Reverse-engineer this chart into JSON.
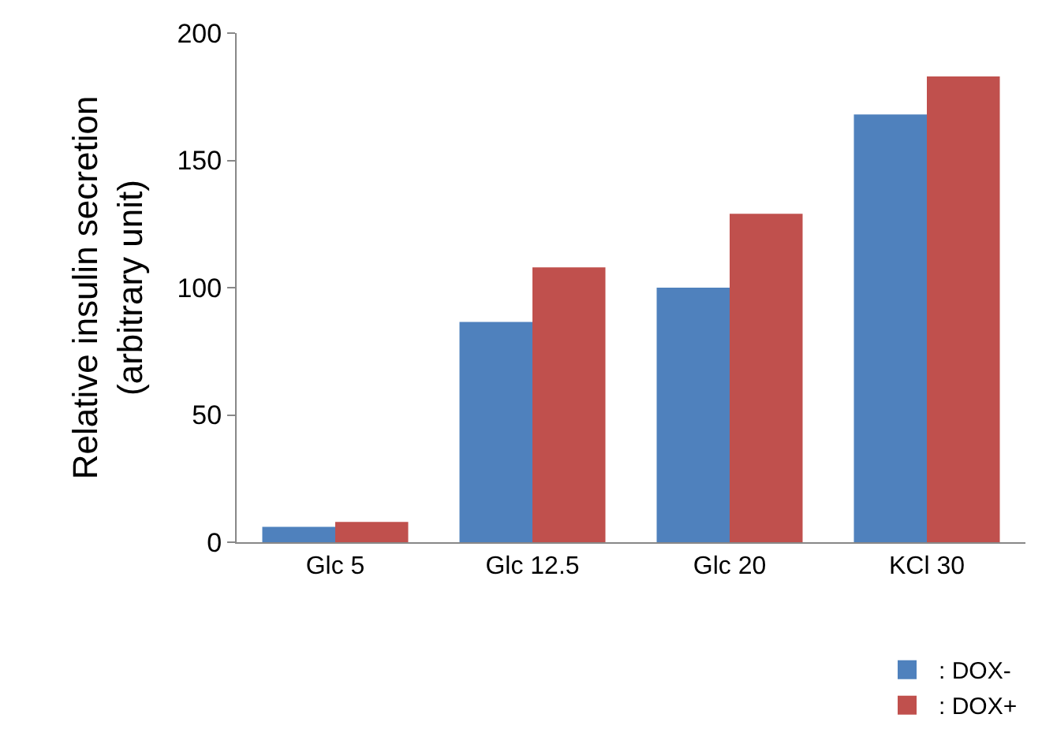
{
  "chart_data": {
    "type": "bar",
    "ylabel": "Relative insulin secretion\n(arbitrary unit)",
    "categories": [
      "Glc 5",
      "Glc 12.5",
      "Glc 20",
      "KCl 30"
    ],
    "series": [
      {
        "name": ": DOX-",
        "color": "#4f81bd",
        "values": [
          6,
          86.5,
          100,
          168
        ]
      },
      {
        "name": ": DOX+",
        "color": "#c0504d",
        "values": [
          8,
          108,
          129,
          183
        ]
      }
    ],
    "ylim": [
      0,
      200
    ],
    "yticks": [
      0,
      50,
      100,
      150,
      200
    ],
    "legend": "bottom right"
  }
}
